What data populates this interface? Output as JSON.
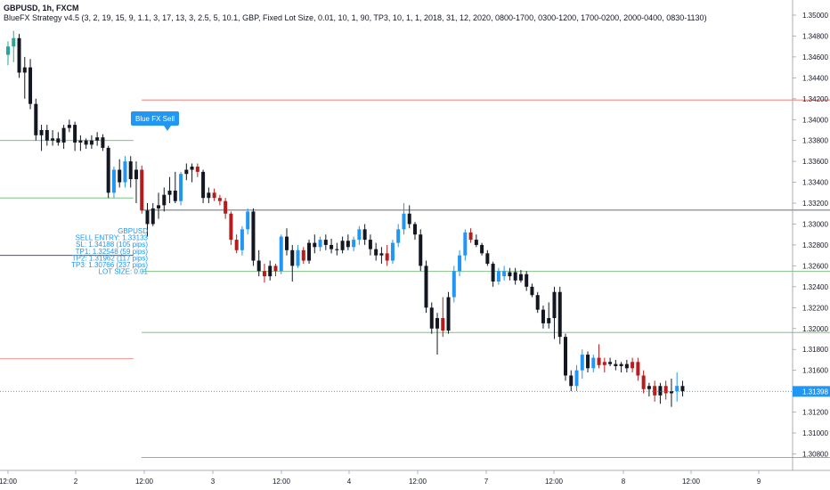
{
  "header": {
    "symbol_line": "GBPUSD, 1h, FXCM",
    "strategy_line": "BlueFX Strategy v4.5 (3, 2, 19, 15, 9, 1.1, 3, 17, 13, 3, 2.5, 5, 10.1, GBP, Fixed Lot Size, 0.01, 10, 1, 90, TP3, 10, 1, 1, 2018, 31, 12, 2020, 0800-1700, 0300-1200, 1700-0200, 2000-0400, 0830-1130)"
  },
  "colors": {
    "bull": "#2196f3",
    "bear": "#b71c1c",
    "neutral": "#131722",
    "early_bull": "#26a69a",
    "sl_line": "#ef5350",
    "tp_line": "#4caf50",
    "entry_line": "#131722",
    "price_line": "#2196f3"
  },
  "chart_data": {
    "type": "candlestick",
    "symbol": "GBPUSD",
    "timeframe": "1h",
    "broker": "FXCM",
    "x_tick_labels": [
      "12:00",
      "2",
      "12:00",
      "3",
      "12:00",
      "4",
      "12:00",
      "7",
      "12:00",
      "8",
      "12:00",
      "9"
    ],
    "y_tick_labels": [
      "1.35000",
      "1.34800",
      "1.34600",
      "1.34400",
      "1.34200",
      "1.34000",
      "1.33800",
      "1.33600",
      "1.33400",
      "1.33200",
      "1.33000",
      "1.32800",
      "1.32600",
      "1.32400",
      "1.32200",
      "1.32000",
      "1.31800",
      "1.31600",
      "1.31400",
      "1.31200",
      "1.31000",
      "1.30800"
    ],
    "ylim": [
      1.3072,
      1.3512
    ],
    "grid": false,
    "current_price": "1.31398",
    "signal_label": "Blue FX Sell",
    "trade_info": [
      "GBPUSD",
      "SELL ENTRY: 1.33133",
      "SL: 1.34188 (105 pips)",
      "TP1: 1.32548 (59 pips)",
      "TP2: 1.31962 (117 pips)",
      "TP3: 1.30766 (237 pips)",
      "LOT SIZE: 0.01"
    ],
    "levels": [
      {
        "name": "previous-sl",
        "price": 1.3171,
        "x_from": 0,
        "x_to": 22.5
      },
      {
        "name": "previous-tp",
        "price": 1.338,
        "x_from": 0,
        "x_to": 22.5
      },
      {
        "name": "previous-tp",
        "price": 1.3325,
        "x_from": 0,
        "x_to": 22.5
      },
      {
        "name": "previous-entry",
        "price": 1.327,
        "x_from": 0,
        "x_to": 22.5
      },
      {
        "name": "sl",
        "price": 1.34188,
        "x_from": 23,
        "x_to": 150
      },
      {
        "name": "entry",
        "price": 1.33133,
        "x_from": 23,
        "x_to": 150
      },
      {
        "name": "tp1",
        "price": 1.32548,
        "x_from": 23,
        "x_to": 150
      },
      {
        "name": "tp2",
        "price": 1.31962,
        "x_from": 23,
        "x_to": 150
      },
      {
        "name": "tp3",
        "price": 1.30766,
        "x_from": 23,
        "x_to": 150
      }
    ],
    "candles": [
      {
        "o": 1.3462,
        "h": 1.3475,
        "l": 1.3452,
        "c": 1.347,
        "k": "g"
      },
      {
        "o": 1.347,
        "h": 1.3485,
        "l": 1.3455,
        "c": 1.3478,
        "k": "g"
      },
      {
        "o": 1.3478,
        "h": 1.3482,
        "l": 1.344,
        "c": 1.3445,
        "k": "n"
      },
      {
        "o": 1.3445,
        "h": 1.346,
        "l": 1.342,
        "c": 1.345,
        "k": "n"
      },
      {
        "o": 1.345,
        "h": 1.3458,
        "l": 1.341,
        "c": 1.3415,
        "k": "n"
      },
      {
        "o": 1.3415,
        "h": 1.342,
        "l": 1.338,
        "c": 1.3385,
        "k": "n"
      },
      {
        "o": 1.3385,
        "h": 1.3395,
        "l": 1.337,
        "c": 1.339,
        "k": "n"
      },
      {
        "o": 1.339,
        "h": 1.3395,
        "l": 1.3375,
        "c": 1.338,
        "k": "n"
      },
      {
        "o": 1.338,
        "h": 1.339,
        "l": 1.3375,
        "c": 1.3382,
        "k": "n"
      },
      {
        "o": 1.3382,
        "h": 1.3388,
        "l": 1.3375,
        "c": 1.3378,
        "k": "n"
      },
      {
        "o": 1.3378,
        "h": 1.3395,
        "l": 1.3372,
        "c": 1.3392,
        "k": "n"
      },
      {
        "o": 1.3392,
        "h": 1.34,
        "l": 1.3388,
        "c": 1.3395,
        "k": "n"
      },
      {
        "o": 1.3395,
        "h": 1.3398,
        "l": 1.337,
        "c": 1.3378,
        "k": "n"
      },
      {
        "o": 1.3378,
        "h": 1.3385,
        "l": 1.337,
        "c": 1.338,
        "k": "n"
      },
      {
        "o": 1.338,
        "h": 1.3382,
        "l": 1.3372,
        "c": 1.3376,
        "k": "n"
      },
      {
        "o": 1.3376,
        "h": 1.3385,
        "l": 1.3372,
        "c": 1.338,
        "k": "n"
      },
      {
        "o": 1.338,
        "h": 1.3388,
        "l": 1.3375,
        "c": 1.3383,
        "k": "n"
      },
      {
        "o": 1.3383,
        "h": 1.3386,
        "l": 1.337,
        "c": 1.3373,
        "k": "n"
      },
      {
        "o": 1.3373,
        "h": 1.3375,
        "l": 1.3325,
        "c": 1.333,
        "k": "n"
      },
      {
        "o": 1.333,
        "h": 1.3355,
        "l": 1.3325,
        "c": 1.3352,
        "k": "b"
      },
      {
        "o": 1.3352,
        "h": 1.3362,
        "l": 1.3335,
        "c": 1.334,
        "k": "n"
      },
      {
        "o": 1.334,
        "h": 1.3365,
        "l": 1.3335,
        "c": 1.336,
        "k": "b"
      },
      {
        "o": 1.336,
        "h": 1.3365,
        "l": 1.3335,
        "c": 1.3343,
        "k": "n"
      },
      {
        "o": 1.3343,
        "h": 1.336,
        "l": 1.332,
        "c": 1.3352,
        "k": "n"
      },
      {
        "o": 1.3352,
        "h": 1.3356,
        "l": 1.331,
        "c": 1.3313,
        "k": "r"
      },
      {
        "o": 1.3313,
        "h": 1.332,
        "l": 1.3288,
        "c": 1.33,
        "k": "n"
      },
      {
        "o": 1.33,
        "h": 1.332,
        "l": 1.3298,
        "c": 1.3315,
        "k": "n"
      },
      {
        "o": 1.3315,
        "h": 1.333,
        "l": 1.3305,
        "c": 1.3318,
        "k": "n"
      },
      {
        "o": 1.3318,
        "h": 1.3335,
        "l": 1.3312,
        "c": 1.3328,
        "k": "n"
      },
      {
        "o": 1.3328,
        "h": 1.3345,
        "l": 1.332,
        "c": 1.3332,
        "k": "n"
      },
      {
        "o": 1.3332,
        "h": 1.335,
        "l": 1.332,
        "c": 1.3322,
        "k": "n"
      },
      {
        "o": 1.3322,
        "h": 1.335,
        "l": 1.3318,
        "c": 1.3348,
        "k": "b"
      },
      {
        "o": 1.3348,
        "h": 1.3358,
        "l": 1.3342,
        "c": 1.3352,
        "k": "n"
      },
      {
        "o": 1.3352,
        "h": 1.3358,
        "l": 1.334,
        "c": 1.3355,
        "k": "n"
      },
      {
        "o": 1.3355,
        "h": 1.3358,
        "l": 1.3345,
        "c": 1.335,
        "k": "r"
      },
      {
        "o": 1.335,
        "h": 1.3352,
        "l": 1.332,
        "c": 1.3325,
        "k": "n"
      },
      {
        "o": 1.3325,
        "h": 1.3335,
        "l": 1.332,
        "c": 1.333,
        "k": "n"
      },
      {
        "o": 1.333,
        "h": 1.3334,
        "l": 1.3322,
        "c": 1.3325,
        "k": "r"
      },
      {
        "o": 1.3325,
        "h": 1.3328,
        "l": 1.3318,
        "c": 1.3322,
        "k": "r"
      },
      {
        "o": 1.3322,
        "h": 1.3325,
        "l": 1.3305,
        "c": 1.331,
        "k": "r"
      },
      {
        "o": 1.331,
        "h": 1.3312,
        "l": 1.328,
        "c": 1.3285,
        "k": "r"
      },
      {
        "o": 1.3285,
        "h": 1.329,
        "l": 1.3272,
        "c": 1.3275,
        "k": "r"
      },
      {
        "o": 1.3275,
        "h": 1.3298,
        "l": 1.327,
        "c": 1.3295,
        "k": "b"
      },
      {
        "o": 1.3295,
        "h": 1.3315,
        "l": 1.329,
        "c": 1.3312,
        "k": "b"
      },
      {
        "o": 1.3312,
        "h": 1.3315,
        "l": 1.326,
        "c": 1.3265,
        "k": "n"
      },
      {
        "o": 1.3265,
        "h": 1.3275,
        "l": 1.325,
        "c": 1.3255,
        "k": "n"
      },
      {
        "o": 1.3255,
        "h": 1.3262,
        "l": 1.3244,
        "c": 1.325,
        "k": "r"
      },
      {
        "o": 1.325,
        "h": 1.3265,
        "l": 1.3246,
        "c": 1.326,
        "k": "n"
      },
      {
        "o": 1.326,
        "h": 1.3262,
        "l": 1.325,
        "c": 1.3255,
        "k": "r"
      },
      {
        "o": 1.3255,
        "h": 1.329,
        "l": 1.3252,
        "c": 1.3288,
        "k": "b"
      },
      {
        "o": 1.3288,
        "h": 1.3296,
        "l": 1.327,
        "c": 1.3275,
        "k": "n"
      },
      {
        "o": 1.3275,
        "h": 1.328,
        "l": 1.3245,
        "c": 1.326,
        "k": "n"
      },
      {
        "o": 1.326,
        "h": 1.328,
        "l": 1.3258,
        "c": 1.3275,
        "k": "b"
      },
      {
        "o": 1.3275,
        "h": 1.3278,
        "l": 1.3262,
        "c": 1.3265,
        "k": "r"
      },
      {
        "o": 1.3265,
        "h": 1.3285,
        "l": 1.3262,
        "c": 1.3282,
        "k": "n"
      },
      {
        "o": 1.3282,
        "h": 1.329,
        "l": 1.3272,
        "c": 1.3278,
        "k": "n"
      },
      {
        "o": 1.3278,
        "h": 1.3288,
        "l": 1.3274,
        "c": 1.3285,
        "k": "b"
      },
      {
        "o": 1.3285,
        "h": 1.329,
        "l": 1.3275,
        "c": 1.328,
        "k": "n"
      },
      {
        "o": 1.328,
        "h": 1.3286,
        "l": 1.3272,
        "c": 1.3276,
        "k": "n"
      },
      {
        "o": 1.3276,
        "h": 1.3282,
        "l": 1.327,
        "c": 1.3275,
        "k": "n"
      },
      {
        "o": 1.3275,
        "h": 1.3288,
        "l": 1.3272,
        "c": 1.3284,
        "k": "n"
      },
      {
        "o": 1.3284,
        "h": 1.329,
        "l": 1.3275,
        "c": 1.3278,
        "k": "n"
      },
      {
        "o": 1.3278,
        "h": 1.3288,
        "l": 1.3274,
        "c": 1.3285,
        "k": "b"
      },
      {
        "o": 1.3285,
        "h": 1.3298,
        "l": 1.328,
        "c": 1.3295,
        "k": "b"
      },
      {
        "o": 1.3295,
        "h": 1.33,
        "l": 1.328,
        "c": 1.3285,
        "k": "n"
      },
      {
        "o": 1.3285,
        "h": 1.329,
        "l": 1.327,
        "c": 1.3276,
        "k": "n"
      },
      {
        "o": 1.3276,
        "h": 1.3282,
        "l": 1.3265,
        "c": 1.327,
        "k": "n"
      },
      {
        "o": 1.327,
        "h": 1.3278,
        "l": 1.3262,
        "c": 1.3272,
        "k": "n"
      },
      {
        "o": 1.3272,
        "h": 1.328,
        "l": 1.326,
        "c": 1.3265,
        "k": "r"
      },
      {
        "o": 1.3265,
        "h": 1.3285,
        "l": 1.3262,
        "c": 1.3282,
        "k": "b"
      },
      {
        "o": 1.3282,
        "h": 1.33,
        "l": 1.3278,
        "c": 1.3295,
        "k": "b"
      },
      {
        "o": 1.3295,
        "h": 1.332,
        "l": 1.329,
        "c": 1.331,
        "k": "b"
      },
      {
        "o": 1.331,
        "h": 1.3318,
        "l": 1.3296,
        "c": 1.33,
        "k": "n"
      },
      {
        "o": 1.33,
        "h": 1.3302,
        "l": 1.3285,
        "c": 1.329,
        "k": "n"
      },
      {
        "o": 1.329,
        "h": 1.3295,
        "l": 1.3255,
        "c": 1.326,
        "k": "n"
      },
      {
        "o": 1.326,
        "h": 1.3265,
        "l": 1.3215,
        "c": 1.322,
        "k": "n"
      },
      {
        "o": 1.322,
        "h": 1.3225,
        "l": 1.3195,
        "c": 1.32,
        "k": "n"
      },
      {
        "o": 1.32,
        "h": 1.3215,
        "l": 1.3175,
        "c": 1.321,
        "k": "n"
      },
      {
        "o": 1.321,
        "h": 1.323,
        "l": 1.3192,
        "c": 1.3198,
        "k": "r"
      },
      {
        "o": 1.3198,
        "h": 1.3235,
        "l": 1.3195,
        "c": 1.323,
        "k": "n"
      },
      {
        "o": 1.323,
        "h": 1.326,
        "l": 1.3225,
        "c": 1.3255,
        "k": "b"
      },
      {
        "o": 1.3255,
        "h": 1.3275,
        "l": 1.325,
        "c": 1.327,
        "k": "b"
      },
      {
        "o": 1.327,
        "h": 1.3295,
        "l": 1.3265,
        "c": 1.3292,
        "k": "b"
      },
      {
        "o": 1.3292,
        "h": 1.3296,
        "l": 1.3282,
        "c": 1.3285,
        "k": "r"
      },
      {
        "o": 1.3285,
        "h": 1.329,
        "l": 1.3278,
        "c": 1.328,
        "k": "n"
      },
      {
        "o": 1.328,
        "h": 1.3282,
        "l": 1.327,
        "c": 1.3272,
        "k": "n"
      },
      {
        "o": 1.3272,
        "h": 1.3275,
        "l": 1.326,
        "c": 1.3262,
        "k": "n"
      },
      {
        "o": 1.3262,
        "h": 1.3264,
        "l": 1.324,
        "c": 1.3245,
        "k": "n"
      },
      {
        "o": 1.3245,
        "h": 1.3258,
        "l": 1.3242,
        "c": 1.3255,
        "k": "b"
      },
      {
        "o": 1.3255,
        "h": 1.326,
        "l": 1.3246,
        "c": 1.325,
        "k": "b"
      },
      {
        "o": 1.325,
        "h": 1.3258,
        "l": 1.3246,
        "c": 1.3254,
        "k": "n"
      },
      {
        "o": 1.3254,
        "h": 1.3258,
        "l": 1.3242,
        "c": 1.3246,
        "k": "n"
      },
      {
        "o": 1.3246,
        "h": 1.3256,
        "l": 1.3244,
        "c": 1.3252,
        "k": "n"
      },
      {
        "o": 1.3252,
        "h": 1.3255,
        "l": 1.3236,
        "c": 1.324,
        "k": "n"
      },
      {
        "o": 1.324,
        "h": 1.3243,
        "l": 1.323,
        "c": 1.3232,
        "k": "n"
      },
      {
        "o": 1.3232,
        "h": 1.3235,
        "l": 1.3215,
        "c": 1.3218,
        "k": "n"
      },
      {
        "o": 1.3218,
        "h": 1.3222,
        "l": 1.32,
        "c": 1.3205,
        "k": "n"
      },
      {
        "o": 1.3205,
        "h": 1.3225,
        "l": 1.32,
        "c": 1.321,
        "k": "n"
      },
      {
        "o": 1.321,
        "h": 1.324,
        "l": 1.319,
        "c": 1.3235,
        "k": "n"
      },
      {
        "o": 1.3235,
        "h": 1.324,
        "l": 1.3185,
        "c": 1.3192,
        "k": "n"
      },
      {
        "o": 1.3192,
        "h": 1.3195,
        "l": 1.315,
        "c": 1.3155,
        "k": "n"
      },
      {
        "o": 1.3155,
        "h": 1.316,
        "l": 1.314,
        "c": 1.3145,
        "k": "n"
      },
      {
        "o": 1.3145,
        "h": 1.3165,
        "l": 1.314,
        "c": 1.316,
        "k": "b"
      },
      {
        "o": 1.316,
        "h": 1.318,
        "l": 1.3152,
        "c": 1.3175,
        "k": "b"
      },
      {
        "o": 1.3175,
        "h": 1.3178,
        "l": 1.3158,
        "c": 1.3162,
        "k": "n"
      },
      {
        "o": 1.3162,
        "h": 1.3175,
        "l": 1.3158,
        "c": 1.3172,
        "k": "b"
      },
      {
        "o": 1.3172,
        "h": 1.3185,
        "l": 1.3162,
        "c": 1.3165,
        "k": "r"
      },
      {
        "o": 1.3165,
        "h": 1.3172,
        "l": 1.3158,
        "c": 1.3168,
        "k": "r"
      },
      {
        "o": 1.3168,
        "h": 1.3172,
        "l": 1.3164,
        "c": 1.3166,
        "k": "n"
      },
      {
        "o": 1.3166,
        "h": 1.317,
        "l": 1.316,
        "c": 1.3164,
        "k": "n"
      },
      {
        "o": 1.3164,
        "h": 1.3168,
        "l": 1.3158,
        "c": 1.3166,
        "k": "n"
      },
      {
        "o": 1.3166,
        "h": 1.317,
        "l": 1.3158,
        "c": 1.3162,
        "k": "n"
      },
      {
        "o": 1.3162,
        "h": 1.3172,
        "l": 1.3158,
        "c": 1.3168,
        "k": "r"
      },
      {
        "o": 1.3168,
        "h": 1.3172,
        "l": 1.315,
        "c": 1.3155,
        "k": "r"
      },
      {
        "o": 1.3155,
        "h": 1.316,
        "l": 1.3138,
        "c": 1.3142,
        "k": "r"
      },
      {
        "o": 1.3142,
        "h": 1.3148,
        "l": 1.3135,
        "c": 1.3145,
        "k": "n"
      },
      {
        "o": 1.3145,
        "h": 1.315,
        "l": 1.313,
        "c": 1.3136,
        "k": "r"
      },
      {
        "o": 1.3136,
        "h": 1.3148,
        "l": 1.3128,
        "c": 1.3145,
        "k": "n"
      },
      {
        "o": 1.3145,
        "h": 1.315,
        "l": 1.3132,
        "c": 1.3138,
        "k": "r"
      },
      {
        "o": 1.3138,
        "h": 1.3152,
        "l": 1.3125,
        "c": 1.314,
        "k": "n"
      },
      {
        "o": 1.314,
        "h": 1.3158,
        "l": 1.313,
        "c": 1.3145,
        "k": "b"
      },
      {
        "o": 1.3145,
        "h": 1.315,
        "l": 1.3135,
        "c": 1.314,
        "k": "n"
      }
    ]
  }
}
